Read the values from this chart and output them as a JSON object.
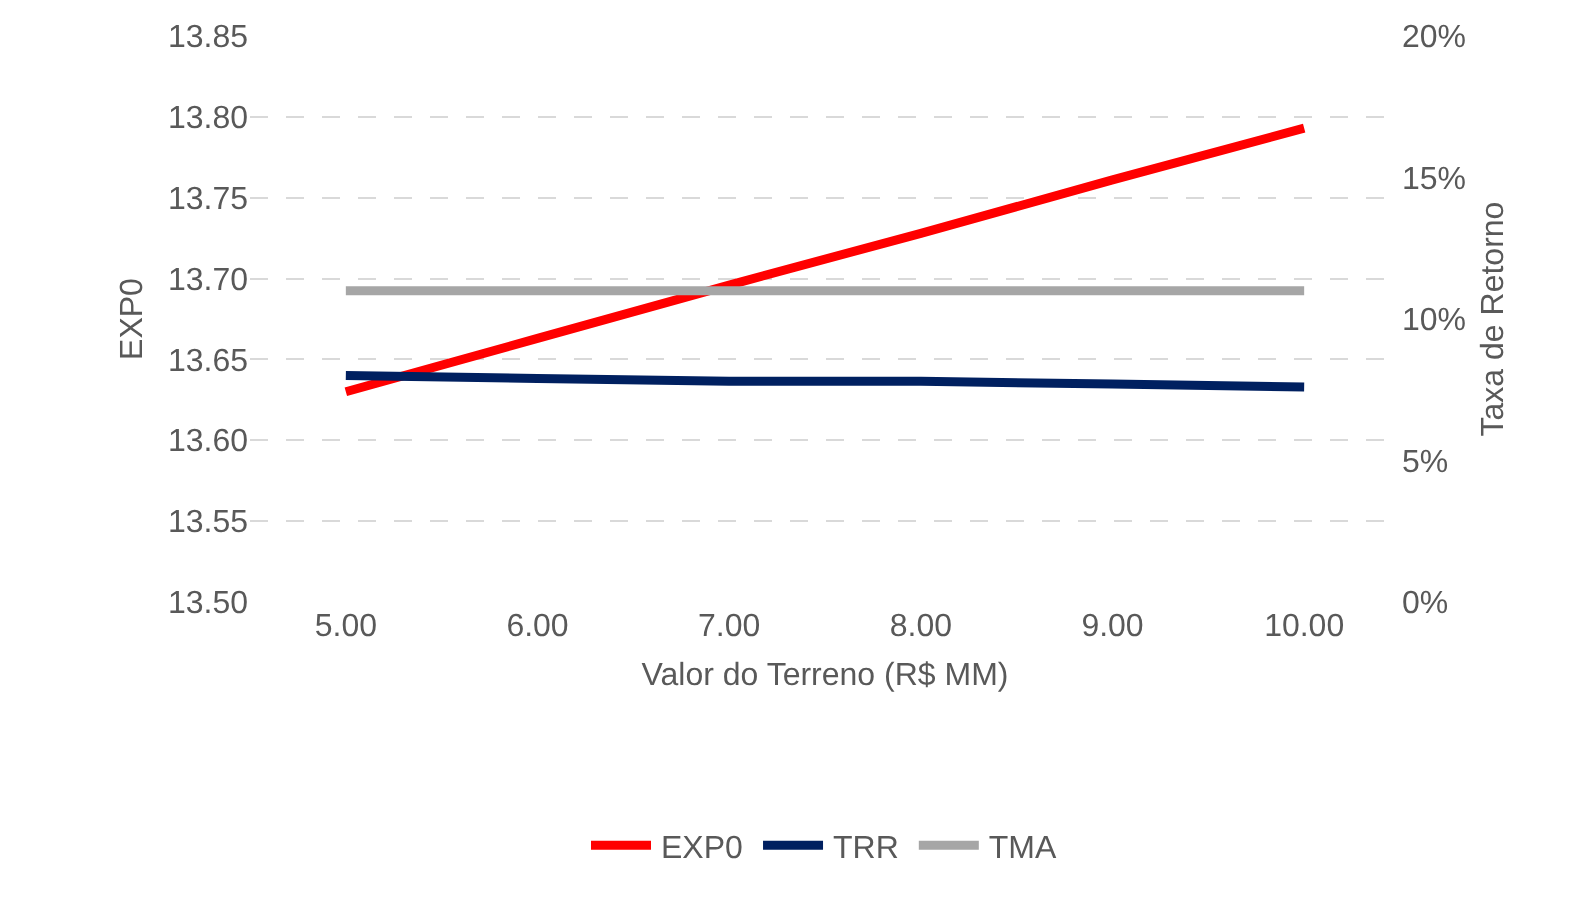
{
  "chart_data": {
    "type": "line",
    "xlabel": "Valor do Terreno (R$ MM)",
    "ylabel": "EXP0",
    "y2label": "Taxa de Retorno",
    "x": [
      5,
      6,
      7,
      8,
      9,
      10
    ],
    "series": [
      {
        "name": "EXP0",
        "color": "#ff0000",
        "values": [
          13.63,
          13.663,
          13.696,
          13.728,
          13.761,
          13.793
        ]
      },
      {
        "name": "TRR",
        "color": "#002060",
        "axis": "y2",
        "values": [
          8.0,
          7.9,
          7.8,
          7.8,
          7.7,
          7.6
        ]
      },
      {
        "name": "TMA",
        "color": "#a6a6a6",
        "axis": "y2",
        "values": [
          11,
          11,
          11,
          11,
          11,
          11
        ]
      }
    ],
    "xlim": [
      4.5,
      10.5
    ],
    "xticks": [
      {
        "value": 5,
        "label": "5.00"
      },
      {
        "value": 6,
        "label": "6.00"
      },
      {
        "value": 7,
        "label": "7.00"
      },
      {
        "value": 8,
        "label": "8.00"
      },
      {
        "value": 9,
        "label": "9.00"
      },
      {
        "value": 10,
        "label": "10.00"
      }
    ],
    "ylim": [
      13.5,
      13.85
    ],
    "yticks": [
      {
        "value": 13.5,
        "label": "13.50"
      },
      {
        "value": 13.55,
        "label": "13.55"
      },
      {
        "value": 13.6,
        "label": "13.60"
      },
      {
        "value": 13.65,
        "label": "13.65"
      },
      {
        "value": 13.7,
        "label": "13.70"
      },
      {
        "value": 13.75,
        "label": "13.75"
      },
      {
        "value": 13.8,
        "label": "13.80"
      },
      {
        "value": 13.85,
        "label": "13.85"
      }
    ],
    "y2lim": [
      0,
      20
    ],
    "y2ticks": [
      {
        "value": 0,
        "label": "0%"
      },
      {
        "value": 5,
        "label": "5%"
      },
      {
        "value": 10,
        "label": "10%"
      },
      {
        "value": 15,
        "label": "15%"
      },
      {
        "value": 20,
        "label": "20%"
      }
    ],
    "grid": "y",
    "legend": "bottom",
    "marker": "none",
    "line_style": "solid"
  }
}
